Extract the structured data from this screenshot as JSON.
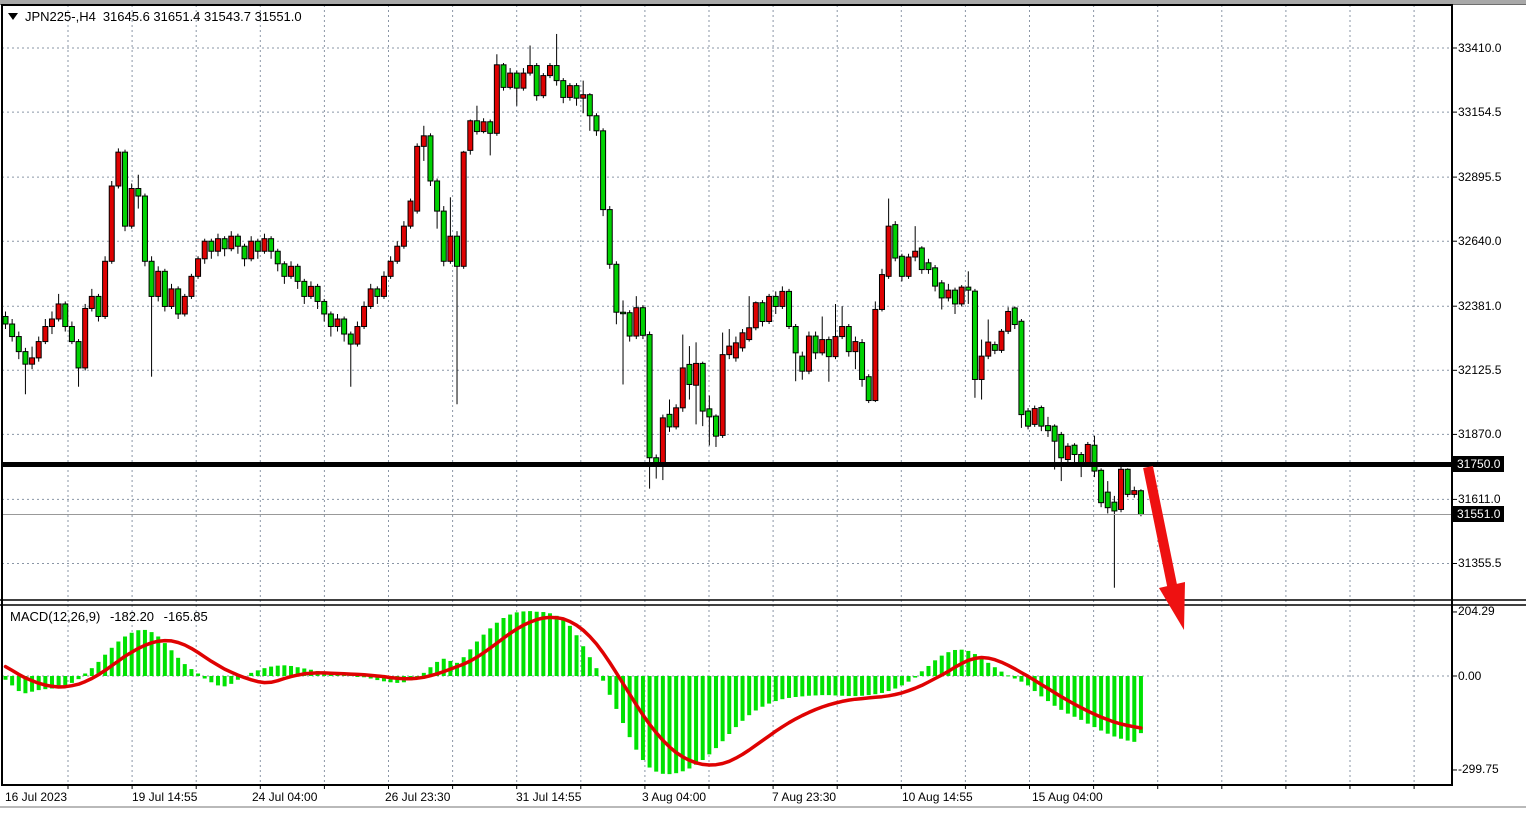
{
  "header": {
    "symbol_period": "JPN225-,H4",
    "ohlc_text": "31645.6 31651.4 31543.7 31551.0",
    "dropdown_icon": "triangle-down-icon"
  },
  "macd_panel": {
    "label": "MACD(12,26,9)",
    "main_value": "-182.20",
    "signal_value": "-165.85"
  },
  "price_axis": {
    "ticks": [
      "33410.0",
      "33154.5",
      "32895.5",
      "32640.0",
      "32381.0",
      "32125.5",
      "31870.0",
      "31611.0",
      "31355.5"
    ],
    "highlighted": [
      {
        "label": "31750.0",
        "price": 31750.0,
        "type": "level-line-tag"
      },
      {
        "label": "31551.0",
        "price": 31551.0,
        "type": "last-price-tag"
      }
    ]
  },
  "time_axis": {
    "labels": [
      "16 Jul 2023",
      "19 Jul 14:55",
      "24 Jul 04:00",
      "26 Jul 23:30",
      "31 Jul 14:55",
      "3 Aug 04:00",
      "7 Aug 23:30",
      "10 Aug 14:55",
      "15 Aug 04:00"
    ]
  },
  "colors": {
    "bull_body": "#df0202",
    "bear_body": "#00d202",
    "wick": "#000000",
    "grid": "#8a96a6",
    "macd_hist": "#00e202",
    "macd_signal": "#df0202",
    "level_line": "#000000",
    "last_price_line": "#999999",
    "arrow": "#ee1111",
    "tag_bg": "#000000",
    "tag_text": "#ffffff"
  },
  "annotations": {
    "arrow": {
      "name": "red-down-arrow",
      "from_price": 31750.0,
      "direction": "down"
    }
  },
  "chart_data": {
    "type": "candlestick",
    "symbol": "JPN225-",
    "timeframe": "H4",
    "note": "bullish candles are red, bearish candles are lime-green in this color scheme",
    "last_ohlc": {
      "open": 31645.6,
      "high": 31651.4,
      "low": 31543.7,
      "close": 31551.0
    },
    "price_axis_ticks": [
      33410.0,
      33154.5,
      32895.5,
      32640.0,
      32381.0,
      32125.5,
      31870.0,
      31611.0,
      31355.5
    ],
    "time_axis_labels": [
      "16 Jul 2023",
      "19 Jul 14:55",
      "24 Jul 04:00",
      "26 Jul 23:30",
      "31 Jul 14:55",
      "3 Aug 04:00",
      "7 Aug 23:30",
      "10 Aug 14:55",
      "15 Aug 04:00"
    ],
    "horizontal_level": 31750.0,
    "last_price": 31551.0,
    "candles": [
      [
        32340,
        32360,
        32290,
        32310
      ],
      [
        32310,
        32330,
        32240,
        32260
      ],
      [
        32260,
        32280,
        32170,
        32200
      ],
      [
        32200,
        32215,
        32030,
        32150
      ],
      [
        32150,
        32220,
        32130,
        32175
      ],
      [
        32175,
        32260,
        32160,
        32240
      ],
      [
        32240,
        32330,
        32230,
        32300
      ],
      [
        32300,
        32360,
        32270,
        32330
      ],
      [
        32330,
        32430,
        32320,
        32390
      ],
      [
        32390,
        32400,
        32280,
        32300
      ],
      [
        32300,
        32320,
        32230,
        32240
      ],
      [
        32240,
        32250,
        32060,
        32135
      ],
      [
        32135,
        32390,
        32125,
        32372
      ],
      [
        32372,
        32450,
        32360,
        32420
      ],
      [
        32420,
        32430,
        32320,
        32340
      ],
      [
        32340,
        32580,
        32330,
        32560
      ],
      [
        32560,
        32880,
        32550,
        32860
      ],
      [
        32860,
        33010,
        32850,
        32995
      ],
      [
        32995,
        33005,
        32680,
        32700
      ],
      [
        32700,
        32870,
        32690,
        32850
      ],
      [
        32850,
        32905,
        32770,
        32820
      ],
      [
        32820,
        32830,
        32540,
        32560
      ],
      [
        32560,
        32580,
        32100,
        32420
      ],
      [
        32420,
        32540,
        32400,
        32520
      ],
      [
        32520,
        32530,
        32360,
        32380
      ],
      [
        32380,
        32470,
        32370,
        32450
      ],
      [
        32450,
        32460,
        32330,
        32350
      ],
      [
        32350,
        32430,
        32340,
        32420
      ],
      [
        32420,
        32510,
        32410,
        32500
      ],
      [
        32500,
        32580,
        32490,
        32570
      ],
      [
        32570,
        32650,
        32550,
        32640
      ],
      [
        32640,
        32650,
        32570,
        32600
      ],
      [
        32600,
        32670,
        32580,
        32650
      ],
      [
        32650,
        32660,
        32580,
        32610
      ],
      [
        32610,
        32680,
        32600,
        32660
      ],
      [
        32660,
        32670,
        32590,
        32620
      ],
      [
        32620,
        32630,
        32540,
        32570
      ],
      [
        32570,
        32660,
        32560,
        32640
      ],
      [
        32640,
        32650,
        32570,
        32600
      ],
      [
        32600,
        32670,
        32590,
        32650
      ],
      [
        32650,
        32660,
        32570,
        32600
      ],
      [
        32600,
        32610,
        32520,
        32550
      ],
      [
        32550,
        32560,
        32470,
        32500
      ],
      [
        32500,
        32560,
        32490,
        32540
      ],
      [
        32540,
        32550,
        32450,
        32480
      ],
      [
        32480,
        32490,
        32390,
        32420
      ],
      [
        32420,
        32480,
        32410,
        32460
      ],
      [
        32460,
        32470,
        32370,
        32400
      ],
      [
        32400,
        32410,
        32320,
        32350
      ],
      [
        32350,
        32360,
        32260,
        32300
      ],
      [
        32300,
        32350,
        32280,
        32330
      ],
      [
        32330,
        32340,
        32240,
        32270
      ],
      [
        32270,
        32280,
        32060,
        32230
      ],
      [
        32230,
        32320,
        32220,
        32300
      ],
      [
        32300,
        32400,
        32290,
        32380
      ],
      [
        32380,
        32470,
        32370,
        32450
      ],
      [
        32450,
        32460,
        32390,
        32420
      ],
      [
        32420,
        32520,
        32410,
        32500
      ],
      [
        32500,
        32580,
        32490,
        32560
      ],
      [
        32560,
        32640,
        32550,
        32620
      ],
      [
        32620,
        32720,
        32610,
        32700
      ],
      [
        32700,
        32810,
        32690,
        32800
      ],
      [
        32760,
        33030,
        32750,
        33018
      ],
      [
        33018,
        33100,
        32960,
        33060
      ],
      [
        33060,
        33070,
        32860,
        32880
      ],
      [
        32880,
        32890,
        32690,
        32760
      ],
      [
        32760,
        32780,
        32540,
        32560
      ],
      [
        32560,
        32815,
        32550,
        32660
      ],
      [
        32660,
        32680,
        31990,
        32540
      ],
      [
        32540,
        33000,
        32530,
        32995
      ],
      [
        33002,
        33125,
        32985,
        33120
      ],
      [
        33120,
        33180,
        33065,
        33077
      ],
      [
        33077,
        33130,
        33070,
        33116
      ],
      [
        33116,
        33125,
        32982,
        33070
      ],
      [
        33070,
        33385,
        33060,
        33343
      ],
      [
        33343,
        33350,
        33240,
        33253
      ],
      [
        33253,
        33330,
        33245,
        33310
      ],
      [
        33310,
        33320,
        33180,
        33250
      ],
      [
        33250,
        33330,
        33240,
        33310
      ],
      [
        33310,
        33420,
        33300,
        33340
      ],
      [
        33340,
        33350,
        33200,
        33220
      ],
      [
        33220,
        33310,
        33210,
        33300
      ],
      [
        33300,
        33350,
        33290,
        33340
      ],
      [
        33340,
        33466,
        33260,
        33280
      ],
      [
        33280,
        33290,
        33190,
        33213
      ],
      [
        33213,
        33270,
        33200,
        33260
      ],
      [
        33260,
        33270,
        33180,
        33210
      ],
      [
        33210,
        33280,
        33150,
        33224
      ],
      [
        33224,
        33230,
        33080,
        33140
      ],
      [
        33140,
        33150,
        33060,
        33080
      ],
      [
        33080,
        33090,
        32740,
        32766
      ],
      [
        32766,
        32780,
        32530,
        32548
      ],
      [
        32548,
        32560,
        32309,
        32357
      ],
      [
        32357,
        32404,
        32069,
        32355
      ],
      [
        32355,
        32365,
        32240,
        32262
      ],
      [
        32262,
        32421,
        32250,
        32375
      ],
      [
        32375,
        32385,
        32250,
        32265
      ],
      [
        32268,
        32280,
        31654,
        31777
      ],
      [
        31777,
        31790,
        31694,
        31757
      ],
      [
        31757,
        31949,
        31688,
        31936
      ],
      [
        31950,
        32009,
        31880,
        31900
      ],
      [
        31900,
        31990,
        31890,
        31976
      ],
      [
        31976,
        32268,
        31960,
        32135
      ],
      [
        32149,
        32222,
        32009,
        32069
      ],
      [
        32066,
        32237,
        31910,
        32153
      ],
      [
        32153,
        32160,
        31903,
        31963
      ],
      [
        31972,
        32025,
        31826,
        31940
      ],
      [
        31943,
        31950,
        31820,
        31863
      ],
      [
        31866,
        32276,
        31856,
        32188
      ],
      [
        32188,
        32290,
        32170,
        32222
      ],
      [
        32175,
        32260,
        32160,
        32235
      ],
      [
        32215,
        32290,
        32200,
        32275
      ],
      [
        32248,
        32421,
        32240,
        32295
      ],
      [
        32295,
        32400,
        32285,
        32395
      ],
      [
        32395,
        32405,
        32300,
        32320
      ],
      [
        32320,
        32430,
        32310,
        32420
      ],
      [
        32420,
        32440,
        32350,
        32380
      ],
      [
        32380,
        32460,
        32370,
        32440
      ],
      [
        32440,
        32450,
        32290,
        32300
      ],
      [
        32300,
        32310,
        32082,
        32195
      ],
      [
        32182,
        32200,
        32088,
        32122
      ],
      [
        32122,
        32280,
        32110,
        32262
      ],
      [
        32262,
        32280,
        32170,
        32195
      ],
      [
        32195,
        32340,
        32185,
        32248
      ],
      [
        32248,
        32260,
        32080,
        32180
      ],
      [
        32180,
        32390,
        32170,
        32260
      ],
      [
        32260,
        32381,
        32250,
        32300
      ],
      [
        32300,
        32310,
        32180,
        32200
      ],
      [
        32200,
        32260,
        32130,
        32240
      ],
      [
        32236,
        32250,
        32060,
        32089
      ],
      [
        32100,
        32110,
        31995,
        32005
      ],
      [
        32005,
        32400,
        31999,
        32368
      ],
      [
        32368,
        32530,
        32360,
        32507
      ],
      [
        32500,
        32810,
        32490,
        32700
      ],
      [
        32706,
        32720,
        32560,
        32573
      ],
      [
        32580,
        32590,
        32480,
        32500
      ],
      [
        32500,
        32590,
        32490,
        32577
      ],
      [
        32577,
        32700,
        32560,
        32600
      ],
      [
        32613,
        32620,
        32510,
        32527
      ],
      [
        32554,
        32570,
        32510,
        32527
      ],
      [
        32534,
        32545,
        32440,
        32461
      ],
      [
        32474,
        32485,
        32368,
        32414
      ],
      [
        32414,
        32470,
        32400,
        32445
      ],
      [
        32445,
        32455,
        32350,
        32390
      ],
      [
        32390,
        32465,
        32380,
        32457
      ],
      [
        32457,
        32520,
        32390,
        32445
      ],
      [
        32441,
        32450,
        32016,
        32089
      ],
      [
        32089,
        32248,
        32009,
        32182
      ],
      [
        32182,
        32328,
        32170,
        32238
      ],
      [
        32228,
        32240,
        32190,
        32205
      ],
      [
        32205,
        32290,
        32195,
        32281
      ],
      [
        32281,
        32377,
        32270,
        32360
      ],
      [
        32374,
        32380,
        32290,
        32308
      ],
      [
        32321,
        32330,
        31896,
        31949
      ],
      [
        31963,
        31975,
        31890,
        31903
      ],
      [
        31910,
        31985,
        31900,
        31973
      ],
      [
        31977,
        31985,
        31883,
        31903
      ],
      [
        31905,
        31940,
        31860,
        31885
      ],
      [
        31903,
        31910,
        31730,
        31843
      ],
      [
        31870,
        31880,
        31684,
        31777
      ],
      [
        31770,
        31835,
        31740,
        31823
      ],
      [
        31827,
        31835,
        31750,
        31790
      ],
      [
        31790,
        31800,
        31700,
        31755
      ],
      [
        31755,
        31840,
        31745,
        31830
      ],
      [
        31827,
        31865,
        31700,
        31724
      ],
      [
        31727,
        31735,
        31580,
        31598
      ],
      [
        31640,
        31684,
        31555,
        31578
      ],
      [
        31600,
        31625,
        31259,
        31565
      ],
      [
        31571,
        31745,
        31560,
        31731
      ],
      [
        31731,
        31735,
        31620,
        31631
      ],
      [
        31631,
        31662,
        31618,
        31646
      ],
      [
        31645.6,
        31651.4,
        31543.7,
        31551.0
      ]
    ],
    "indicator": {
      "name": "MACD(12,26,9)",
      "current_macd": -182.2,
      "current_signal": -165.85,
      "axis_ticks": [
        204.29,
        0.0,
        -299.75
      ],
      "histogram": [
        -12,
        -30,
        -48,
        -55,
        -50,
        -45,
        -42,
        -40,
        -36,
        -30,
        -22,
        -10,
        8,
        25,
        45,
        68,
        90,
        110,
        126,
        138,
        146,
        147,
        140,
        126,
        105,
        82,
        58,
        38,
        22,
        8,
        -8,
        -20,
        -30,
        -33,
        -25,
        -12,
        0,
        10,
        18,
        25,
        30,
        33,
        34,
        32,
        28,
        24,
        20,
        16,
        12,
        9,
        7,
        5,
        3,
        0,
        -4,
        -8,
        -13,
        -17,
        -20,
        -22,
        -20,
        -14,
        -5,
        10,
        28,
        45,
        55,
        48,
        42,
        60,
        85,
        110,
        132,
        152,
        170,
        185,
        196,
        203,
        206,
        207,
        205,
        204,
        200,
        192,
        180,
        160,
        130,
        95,
        60,
        25,
        -15,
        -60,
        -105,
        -150,
        -195,
        -235,
        -268,
        -292,
        -305,
        -312,
        -313,
        -310,
        -304,
        -295,
        -283,
        -268,
        -250,
        -230,
        -208,
        -185,
        -163,
        -143,
        -125,
        -110,
        -98,
        -88,
        -80,
        -74,
        -70,
        -67,
        -65,
        -63,
        -62,
        -61,
        -61,
        -62,
        -63,
        -64,
        -64,
        -63,
        -61,
        -58,
        -54,
        -48,
        -40,
        -30,
        -18,
        -5,
        15,
        32,
        50,
        65,
        76,
        83,
        84,
        80,
        70,
        57,
        42,
        28,
        14,
        2,
        -8,
        -18,
        -30,
        -48,
        -65,
        -80,
        -95,
        -108,
        -120,
        -130,
        -140,
        -152,
        -163,
        -174,
        -184,
        -193,
        -200,
        -206,
        -210,
        -182.2
      ],
      "signal": [
        30,
        18,
        5,
        -6,
        -15,
        -23,
        -29,
        -33,
        -35,
        -34,
        -31,
        -26,
        -18,
        -8,
        4,
        18,
        33,
        48,
        63,
        76,
        88,
        98,
        106,
        111,
        113,
        112,
        107,
        99,
        88,
        75,
        61,
        47,
        34,
        22,
        12,
        3,
        -5,
        -12,
        -18,
        -21,
        -20,
        -15,
        -8,
        -2,
        3,
        7,
        9,
        10,
        10,
        9,
        8,
        7,
        6,
        5,
        4,
        2,
        0,
        -2,
        -5,
        -7,
        -9,
        -9,
        -7,
        -4,
        1,
        7,
        14,
        22,
        30,
        38,
        48,
        60,
        74,
        89,
        105,
        121,
        136,
        150,
        162,
        172,
        180,
        185,
        187,
        186,
        182,
        174,
        162,
        146,
        126,
        102,
        74,
        43,
        10,
        -24,
        -58,
        -92,
        -124,
        -154,
        -181,
        -205,
        -226,
        -244,
        -258,
        -269,
        -277,
        -282,
        -284,
        -283,
        -279,
        -272,
        -262,
        -250,
        -236,
        -221,
        -206,
        -191,
        -176,
        -162,
        -149,
        -137,
        -126,
        -116,
        -107,
        -99,
        -92,
        -86,
        -81,
        -77,
        -74,
        -72,
        -70,
        -68,
        -66,
        -63,
        -59,
        -54,
        -47,
        -39,
        -30,
        -19,
        -8,
        3,
        15,
        28,
        40,
        50,
        56,
        59,
        57,
        52,
        44,
        34,
        23,
        11,
        -1,
        -14,
        -27,
        -40,
        -53,
        -66,
        -78,
        -90,
        -101,
        -112,
        -122,
        -131,
        -139,
        -147,
        -153,
        -158,
        -162,
        -165.85
      ]
    }
  }
}
